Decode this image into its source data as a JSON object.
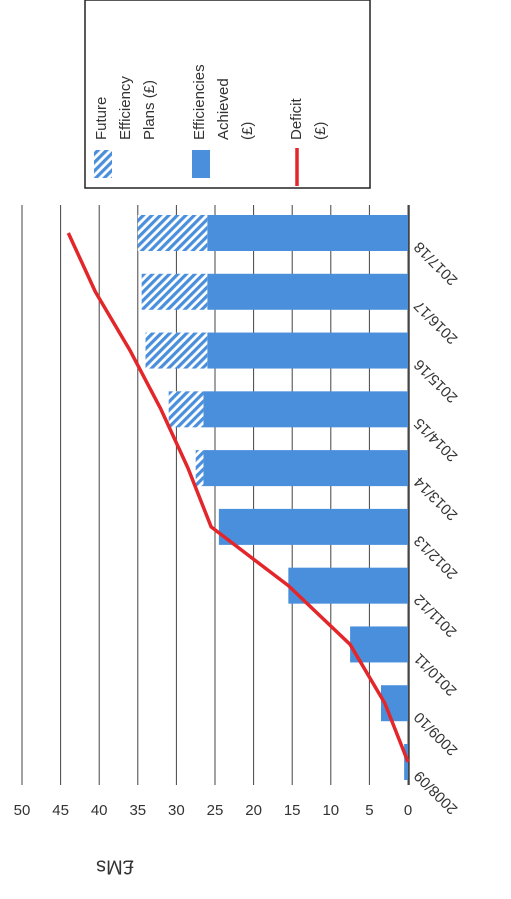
{
  "chart_data": {
    "type": "bar",
    "y_label": "£Ms",
    "categories": [
      "2008/09",
      "2009/10",
      "2010/11",
      "2011/12",
      "2012/13",
      "2013/14",
      "2014/15",
      "2015/16",
      "2016/17",
      "2017/18"
    ],
    "series": [
      {
        "name": "Efficiencies Achieved (£)",
        "color": "#4a8fdc",
        "values": [
          0.5,
          3.5,
          7.5,
          15.5,
          24.5,
          26.5,
          26.5,
          26,
          26,
          26
        ]
      },
      {
        "name": "Future Efficiency Plans (£)",
        "color": "#4a8fdc",
        "pattern": "hatch",
        "values": [
          0,
          0,
          0,
          0,
          0,
          1,
          4.5,
          8,
          8.5,
          9
        ]
      },
      {
        "name": "Deficit (£)",
        "type": "line",
        "color": "#e3262a",
        "values": [
          0,
          3,
          7.5,
          15.5,
          25.5,
          28.5,
          32,
          36,
          40.5,
          44
        ]
      }
    ],
    "ylim": [
      0,
      50
    ],
    "yticks": [
      0,
      5,
      10,
      15,
      20,
      25,
      30,
      35,
      40,
      45,
      50
    ],
    "grid": true,
    "stacked": true,
    "legend": "top-right"
  }
}
